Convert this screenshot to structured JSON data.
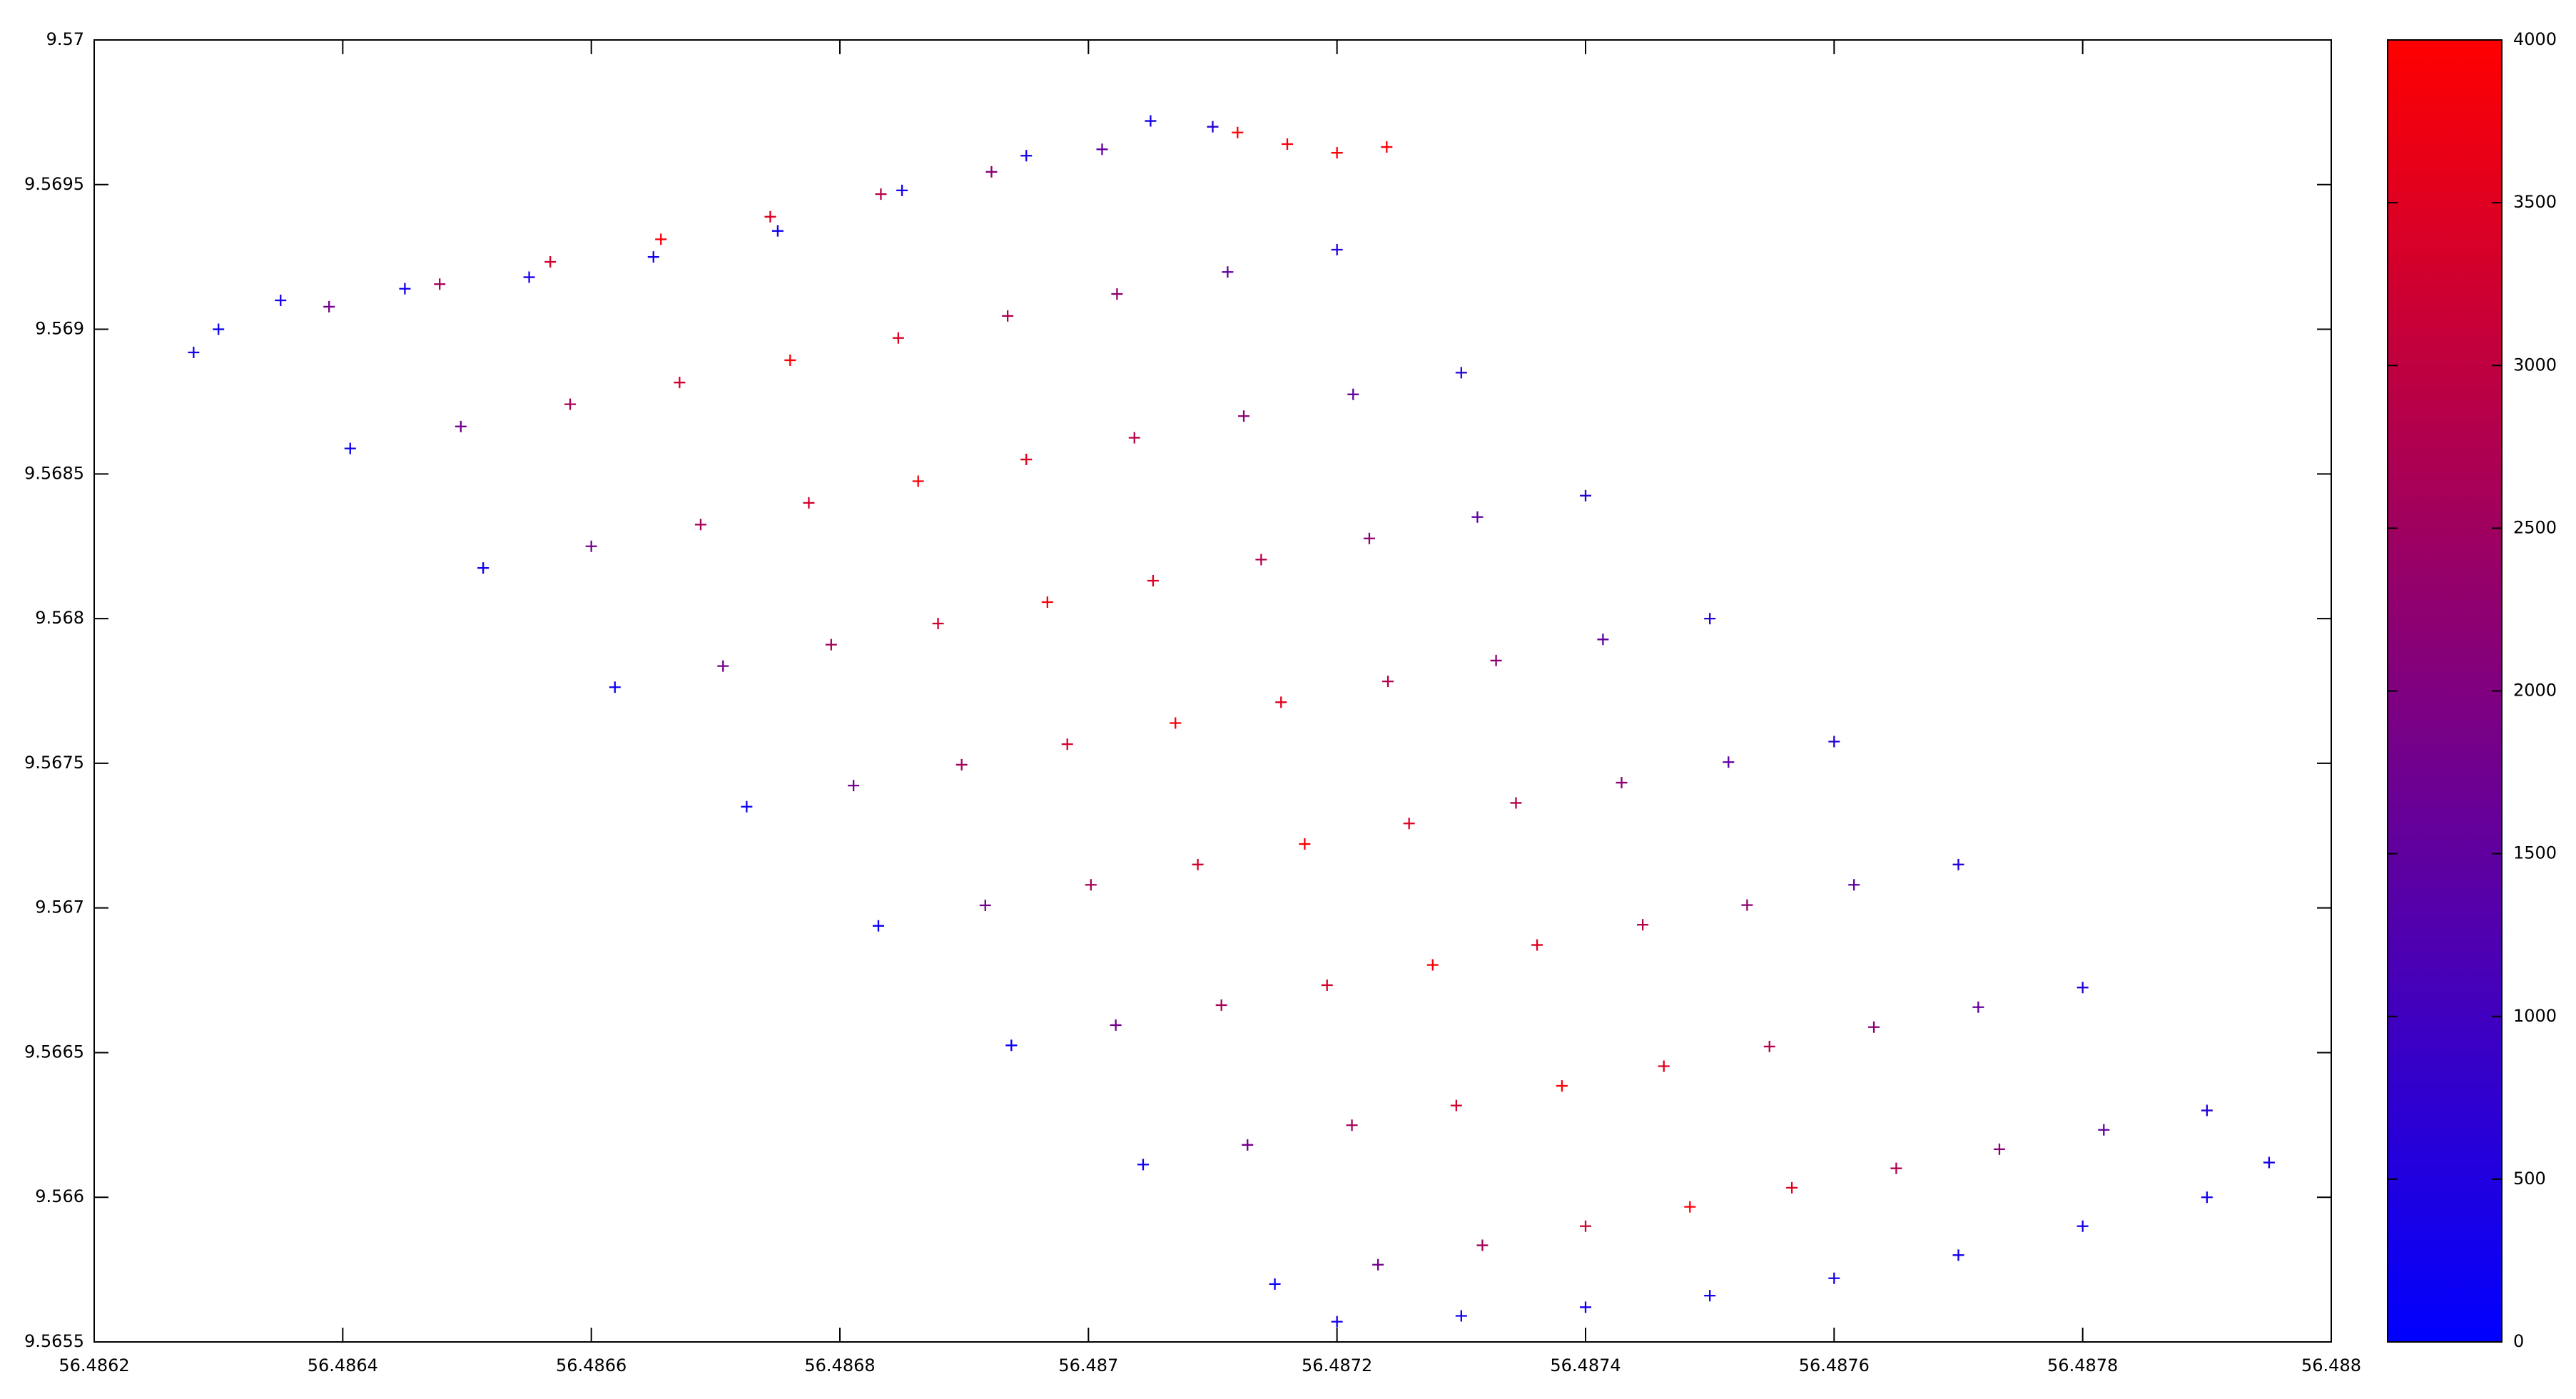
{
  "chart_data": {
    "type": "scatter",
    "marker": "+",
    "xlim": [
      56.4862,
      56.488
    ],
    "xticks": [
      56.4862,
      56.4864,
      56.4866,
      56.4868,
      56.487,
      56.4872,
      56.4874,
      56.4876,
      56.4878,
      56.488
    ],
    "ylim": [
      9.5655,
      9.57
    ],
    "yticks": [
      9.5655,
      9.566,
      9.5665,
      9.567,
      9.5675,
      9.568,
      9.5685,
      9.569,
      9.5695,
      9.57
    ],
    "colorbar": {
      "lim": [
        0,
        4000
      ],
      "ticks": [
        0,
        500,
        1000,
        1500,
        2000,
        2500,
        3000,
        3500,
        4000
      ],
      "colors": [
        "#0000ff",
        "#ff0000"
      ]
    },
    "x": [
      56.4863,
      56.486406,
      56.486513,
      56.486619,
      56.486725,
      56.486831,
      56.486938,
      56.487044,
      56.48715,
      56.486389,
      56.486495,
      56.4866,
      56.486706,
      56.486811,
      56.486917,
      56.487022,
      56.487128,
      56.487233,
      56.486478,
      56.486583,
      56.486688,
      56.486793,
      56.486898,
      56.487002,
      56.487107,
      56.487212,
      56.487317,
      56.486567,
      56.486671,
      56.486775,
      56.486879,
      56.486983,
      56.487088,
      56.487192,
      56.487296,
      56.4874,
      56.486656,
      56.48676,
      56.486863,
      56.486967,
      56.48707,
      56.487174,
      56.487277,
      56.487381,
      56.487484,
      56.486744,
      56.486847,
      56.48695,
      56.487052,
      56.487155,
      56.487258,
      56.487361,
      56.487463,
      56.487566,
      56.486833,
      56.486935,
      56.487037,
      56.487139,
      56.487241,
      56.487344,
      56.487446,
      56.487548,
      56.48765,
      56.486922,
      56.487023,
      56.487125,
      56.487226,
      56.487328,
      56.487429,
      56.48753,
      56.487632,
      56.487733,
      56.487011,
      56.487112,
      56.487213,
      56.487313,
      56.487414,
      56.487515,
      56.487616,
      56.487716,
      56.487817,
      56.4871,
      56.4872,
      56.4873,
      56.4874,
      56.4875,
      56.4876,
      56.4877,
      56.4878,
      56.4879,
      56.48628,
      56.48635,
      56.48645,
      56.48655,
      56.48665,
      56.48675,
      56.48685,
      56.48695,
      56.48705,
      56.48712,
      56.48716,
      56.4872,
      56.48724,
      56.4872,
      56.4873,
      56.4874,
      56.4875,
      56.4876,
      56.4877,
      56.4878,
      56.4879,
      56.48795
    ],
    "values": [
      9.569,
      9.568588,
      9.568175,
      9.567763,
      9.56735,
      9.566938,
      9.566525,
      9.566113,
      9.5657,
      9.569078,
      9.568664,
      9.56825,
      9.567836,
      9.567423,
      9.567009,
      9.566595,
      9.566181,
      9.565767,
      9.569156,
      9.568741,
      9.568325,
      9.56791,
      9.567495,
      9.56708,
      9.566664,
      9.566249,
      9.565834,
      9.569233,
      9.568816,
      9.5684,
      9.567983,
      9.567566,
      9.56715,
      9.566733,
      9.566317,
      9.5659,
      9.569311,
      9.568893,
      9.568475,
      9.568057,
      9.567639,
      9.567221,
      9.566803,
      9.566385,
      9.565967,
      9.569389,
      9.56897,
      9.56855,
      9.568131,
      9.567711,
      9.567292,
      9.566872,
      9.566453,
      9.566033,
      9.569467,
      9.569046,
      9.568625,
      9.568204,
      9.567783,
      9.567363,
      9.566942,
      9.566521,
      9.5661,
      9.569544,
      9.569122,
      9.5687,
      9.568277,
      9.567855,
      9.567433,
      9.56701,
      9.566588,
      9.566166,
      9.569622,
      9.569198,
      9.568775,
      9.568351,
      9.567928,
      9.567504,
      9.56708,
      9.566657,
      9.566233,
      9.5697,
      9.569275,
      9.56885,
      9.568425,
      9.568,
      9.567575,
      9.56715,
      9.566725,
      9.5663,
      9.56892,
      9.5691,
      9.56914,
      9.56918,
      9.56925,
      9.56934,
      9.56948,
      9.5696,
      9.56972,
      9.56968,
      9.56964,
      9.56961,
      9.56963,
      9.56557,
      9.56559,
      9.56562,
      9.56566,
      9.56572,
      9.5658,
      9.5659,
      9.566,
      9.56612
    ],
    "color_values": [
      200,
      200,
      200,
      200,
      200,
      200,
      200,
      200,
      200,
      1800,
      1800,
      1800,
      1800,
      1800,
      1800,
      1800,
      1800,
      1800,
      2600,
      2600,
      2600,
      2600,
      2600,
      2600,
      2600,
      2600,
      2600,
      3300,
      3300,
      3300,
      3300,
      3300,
      3300,
      3300,
      3300,
      3300,
      3900,
      3900,
      3900,
      3900,
      3900,
      3900,
      3900,
      3900,
      3900,
      3500,
      3500,
      3500,
      3500,
      3500,
      3500,
      3500,
      3500,
      3500,
      2800,
      2800,
      2800,
      2800,
      2800,
      2800,
      2800,
      2800,
      2800,
      2200,
      2200,
      2200,
      2200,
      2200,
      2200,
      2200,
      2200,
      2200,
      1500,
      1500,
      1500,
      1500,
      1500,
      1500,
      1500,
      1500,
      1500,
      600,
      600,
      600,
      600,
      600,
      600,
      600,
      600,
      600,
      300,
      300,
      300,
      300,
      300,
      300,
      300,
      300,
      300,
      3900,
      3900,
      3900,
      3900,
      300,
      300,
      300,
      300,
      300,
      300,
      300,
      300,
      300
    ]
  }
}
